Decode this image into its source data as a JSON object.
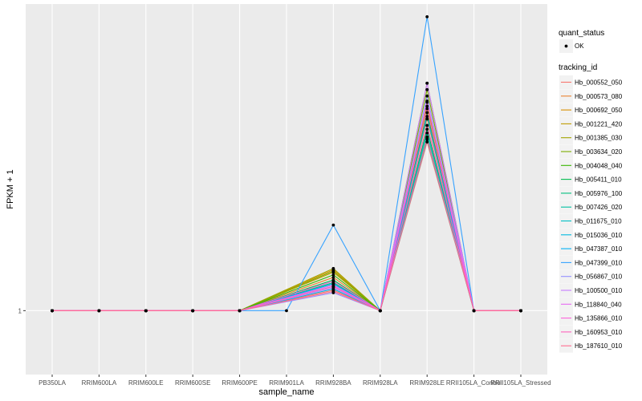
{
  "chart_data": {
    "type": "line",
    "xlabel": "sample_name",
    "ylabel": "FPKM + 1",
    "y_tick_labels": [
      {
        "value": 1,
        "label": "1"
      }
    ],
    "ylim": [
      0.5,
      3.4
    ],
    "grid": true,
    "legend_placement": "right",
    "categories": [
      "PB350LA",
      "RRIM600LA",
      "RRIM600LE",
      "RRIM600SE",
      "RRIM600PE",
      "RRIM901LA",
      "RRIM928BA",
      "RRIM928LA",
      "RRIM928LE",
      "RRII105LA_Control",
      "RRII105LA_Stressed"
    ],
    "point_legend": {
      "title": "quant_status",
      "entries": [
        {
          "label": "OK"
        }
      ]
    },
    "line_legend_title": "tracking_id",
    "series": [
      {
        "name": "Hb_000552_050",
        "color": "#F8766D",
        "values": [
          1,
          1,
          1,
          1,
          1,
          null,
          1.16,
          1,
          2.32,
          1,
          1
        ]
      },
      {
        "name": "Hb_000573_080",
        "color": "#EA8331",
        "values": [
          1,
          1,
          1,
          1,
          1,
          null,
          1.26,
          1,
          2.5,
          1,
          1
        ]
      },
      {
        "name": "Hb_000692_050",
        "color": "#D89000",
        "values": [
          1,
          1,
          1,
          1,
          1,
          null,
          1.32,
          1,
          2.6,
          1,
          1
        ]
      },
      {
        "name": "Hb_001221_420",
        "color": "#C09B00",
        "values": [
          1,
          1,
          1,
          1,
          1,
          null,
          1.3,
          1,
          2.63,
          1,
          1
        ]
      },
      {
        "name": "Hb_001385_030",
        "color": "#A3A500",
        "values": [
          1,
          1,
          1,
          1,
          1,
          null,
          1.33,
          1,
          2.78,
          1,
          1
        ]
      },
      {
        "name": "Hb_003634_020",
        "color": "#7CAE00",
        "values": [
          1,
          1,
          1,
          1,
          1,
          null,
          1.31,
          1,
          2.73,
          1,
          1
        ]
      },
      {
        "name": "Hb_004048_040",
        "color": "#39B600",
        "values": [
          1,
          1,
          1,
          1,
          1,
          null,
          1.28,
          1,
          2.55,
          1,
          1
        ]
      },
      {
        "name": "Hb_005411_010",
        "color": "#00BB4E",
        "values": [
          1,
          1,
          1,
          1,
          1,
          null,
          1.24,
          1,
          2.42,
          1,
          1
        ]
      },
      {
        "name": "Hb_005976_100",
        "color": "#00BF7D",
        "values": [
          1,
          1,
          1,
          1,
          1,
          null,
          1.22,
          1,
          2.36,
          1,
          1
        ]
      },
      {
        "name": "Hb_007426_020",
        "color": "#00C1A3",
        "values": [
          1,
          1,
          1,
          1,
          1,
          null,
          1.21,
          1,
          2.45,
          1,
          1
        ]
      },
      {
        "name": "Hb_011675_010",
        "color": "#00BFC4",
        "values": [
          1,
          1,
          1,
          1,
          1,
          null,
          1.19,
          1,
          2.39,
          1,
          1
        ]
      },
      {
        "name": "Hb_015036_010",
        "color": "#00BAE0",
        "values": [
          1,
          1,
          1,
          1,
          1,
          null,
          1.17,
          1,
          2.34,
          1,
          1
        ]
      },
      {
        "name": "Hb_047387_010",
        "color": "#00B0F6",
        "values": [
          1,
          1,
          1,
          1,
          1,
          null,
          1.21,
          1,
          2.52,
          1,
          1
        ]
      },
      {
        "name": "Hb_047399_010",
        "color": "#35A2FF",
        "values": [
          1,
          1,
          1,
          1,
          1,
          1,
          1.67,
          1,
          3.3,
          1,
          1
        ]
      },
      {
        "name": "Hb_056867_010",
        "color": "#9590FF",
        "values": [
          1,
          1,
          1,
          1,
          1,
          null,
          1.14,
          1,
          2.68,
          1,
          1
        ]
      },
      {
        "name": "Hb_100500_010",
        "color": "#C77CFF",
        "values": [
          1,
          1,
          1,
          1,
          1,
          null,
          1.18,
          1,
          2.78,
          1,
          1
        ]
      },
      {
        "name": "Hb_118840_040",
        "color": "#E76BF3",
        "values": [
          1,
          1,
          1,
          1,
          1,
          null,
          1.2,
          1,
          2.64,
          1,
          1
        ]
      },
      {
        "name": "Hb_135866_010",
        "color": "#FA62DB",
        "values": [
          1,
          1,
          1,
          1,
          1,
          null,
          1.23,
          1,
          2.58,
          1,
          1
        ]
      },
      {
        "name": "Hb_160953_010",
        "color": "#FF62BC",
        "values": [
          1,
          1,
          1,
          1,
          1,
          null,
          1.19,
          1,
          2.45,
          1,
          1
        ]
      },
      {
        "name": "Hb_187610_010",
        "color": "#FF6C91",
        "values": [
          1,
          1,
          1,
          1,
          1,
          null,
          1.15,
          1,
          2.35,
          1,
          1
        ]
      }
    ]
  },
  "colors": {
    "panel": "#EBEBEB",
    "grid_major": "#FFFFFF",
    "grid_minor": "#F2F2F2",
    "point": "#000000",
    "legend_key_bg": "#F2F2F2"
  }
}
